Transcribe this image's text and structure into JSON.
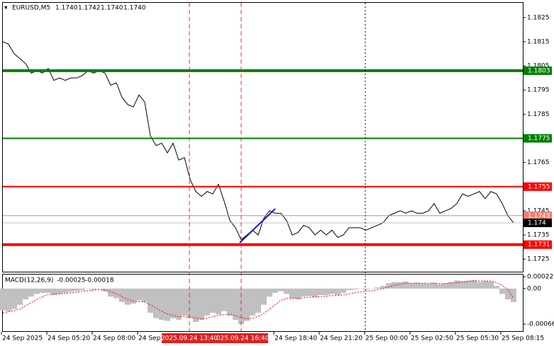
{
  "header": {
    "symbol": "EURUSD,M5",
    "ohlc": [
      "1.1740",
      "1.1742",
      "1.1740",
      "1.1740"
    ]
  },
  "chart_data": [
    {
      "type": "line",
      "color": "#000000",
      "values": [
        1.1815,
        1.1814,
        1.181,
        1.1808,
        1.1806,
        1.1802,
        1.1803,
        1.1802,
        1.1804,
        1.1799,
        1.18,
        1.1799,
        1.18,
        1.18,
        1.1801,
        1.1803,
        1.1802,
        1.1803,
        1.1802,
        1.1797,
        1.1798,
        1.1792,
        1.1789,
        1.1788,
        1.1793,
        1.179,
        1.1776,
        1.1772,
        1.1773,
        1.1769,
        1.1773,
        1.1766,
        1.1767,
        1.1758,
        1.1753,
        1.1751,
        1.1753,
        1.1752,
        1.1756,
        1.1749,
        1.1741,
        1.1738,
        1.1733,
        1.1735,
        1.1737,
        1.1735,
        1.1742,
        1.1745,
        1.1744,
        1.1744,
        1.1741,
        1.1735,
        1.1736,
        1.1739,
        1.1738,
        1.1735,
        1.1737,
        1.1735,
        1.1737,
        1.1734,
        1.1735,
        1.1738,
        1.1738,
        1.1738,
        1.1737,
        1.1738,
        1.1739,
        1.174,
        1.1743,
        1.1744,
        1.1745,
        1.1744,
        1.1745,
        1.1744,
        1.1744,
        1.1745,
        1.1748,
        1.1744,
        1.1745,
        1.1746,
        1.1748,
        1.1752,
        1.1751,
        1.1752,
        1.1753,
        1.175,
        1.1753,
        1.1752,
        1.1748,
        1.1743,
        1.174
      ],
      "ylim": [
        1.17195,
        1.18311
      ],
      "yticks": [
        1.1825,
        1.1815,
        1.1805,
        1.1795,
        1.1785,
        1.1765,
        1.1745,
        1.1735,
        1.1725
      ],
      "levels": [
        {
          "value": 1.1803,
          "color": "#008000",
          "style": "thick"
        },
        {
          "value": 1.1775,
          "color": "#008000",
          "style": "medium"
        },
        {
          "value": 1.1755,
          "color": "#ff0000",
          "style": "medium"
        },
        {
          "value": 1.1743,
          "color": "#f08070",
          "style": "thin"
        },
        {
          "value": 1.174,
          "color": "#000000",
          "style": "thin"
        },
        {
          "value": 1.1731,
          "color": "#ff0000",
          "style": "thick"
        }
      ]
    },
    {
      "type": "macd",
      "name": "MACD(12,26,9)",
      "histogram": {
        "color": "#c0c0c0",
        "values": [
          -0.0004,
          -0.00042,
          -0.00038,
          -0.0003,
          -0.0002,
          -0.00015,
          -0.0001,
          -8e-05,
          -8e-05,
          -0.00012,
          -0.0001,
          -8e-05,
          -6e-05,
          -5e-05,
          -3e-05,
          0,
          -2e-05,
          0,
          -5e-05,
          -0.00015,
          -0.00018,
          -0.00025,
          -0.0003,
          -0.00028,
          -0.00022,
          -0.00025,
          -0.00045,
          -0.00055,
          -0.00058,
          -0.0006,
          -0.00055,
          -0.00058,
          -0.0005,
          -0.00055,
          -0.00062,
          -0.00058,
          -0.0005,
          -0.00045,
          -0.00048,
          -0.00042,
          -0.0005,
          -0.00058,
          -0.00066,
          -0.0006,
          -0.0005,
          -0.00045,
          -0.0003,
          -0.00015,
          -8e-05,
          -5e-05,
          -0.0001,
          -0.00018,
          -0.0002,
          -0.00015,
          -0.00014,
          -0.00016,
          -0.00012,
          -0.00012,
          -0.0001,
          -0.00012,
          -8e-05,
          -3e-05,
          -2e-05,
          0,
          -2e-05,
          0,
          2e-05,
          5e-05,
          0.0001,
          0.00012,
          0.00012,
          0.00013,
          0.0001,
          0.00011,
          0.0001,
          9e-05,
          0.00011,
          8e-05,
          0.0001,
          0.00012,
          0.00015,
          0.00014,
          0.00015,
          0.00016,
          0.00012,
          0.00014,
          0.00013,
          5e-05,
          -0.0001,
          -0.0002,
          -0.00025
        ]
      },
      "signal": {
        "color": "#ff0000",
        "values": [
          -0.00045,
          -0.00043,
          -0.00041,
          -0.00038,
          -0.00032,
          -0.00026,
          -0.0002,
          -0.00015,
          -0.00011,
          -0.0001,
          -0.0001,
          -9e-05,
          -8e-05,
          -7e-05,
          -5e-05,
          -4e-05,
          -3e-05,
          -2e-05,
          -3e-05,
          -6e-05,
          -0.0001,
          -0.00015,
          -0.0002,
          -0.00023,
          -0.00024,
          -0.00025,
          -0.0003,
          -0.00036,
          -0.00042,
          -0.00047,
          -0.0005,
          -0.00052,
          -0.00052,
          -0.00053,
          -0.00055,
          -0.00056,
          -0.00055,
          -0.00052,
          -0.0005,
          -0.00048,
          -0.00048,
          -0.0005,
          -0.00054,
          -0.00056,
          -0.00055,
          -0.00052,
          -0.00046,
          -0.00038,
          -0.0003,
          -0.00022,
          -0.00018,
          -0.00018,
          -0.00018,
          -0.00017,
          -0.00016,
          -0.00016,
          -0.00015,
          -0.00014,
          -0.00013,
          -0.00013,
          -0.00012,
          -0.0001,
          -8e-05,
          -6e-05,
          -5e-05,
          -4e-05,
          -2e-05,
          0,
          3e-05,
          6e-05,
          8e-05,
          0.0001,
          0.0001,
          0.0001,
          0.0001,
          0.0001,
          0.0001,
          9e-05,
          9e-05,
          0.0001,
          0.00011,
          0.00012,
          0.00013,
          0.00014,
          0.00014,
          0.00014,
          0.00014,
          0.00011,
          6e-05,
          -2e-05,
          -0.00018
        ]
      },
      "ylim": [
        -0.00079,
        0.00026
      ],
      "yticks": [
        0.00022,
        {
          "value": 0,
          "label": "0.00"
        },
        -0.00066
      ]
    }
  ],
  "time_axis": {
    "labels": [
      "24 Sep 2025",
      "24 Sep 05:20",
      "24 Sep 08:00",
      "24 Sep",
      null,
      null,
      "24 Sep 18:40",
      "24 Sep 21:20",
      "25 Sep 00:00",
      "25 Sep 02:50",
      "25 Sep 05:30",
      "25 Sep 08:15"
    ],
    "crosshair_labels": [
      "2025.09.24 13:40",
      "025.09.24 16:40"
    ]
  }
}
